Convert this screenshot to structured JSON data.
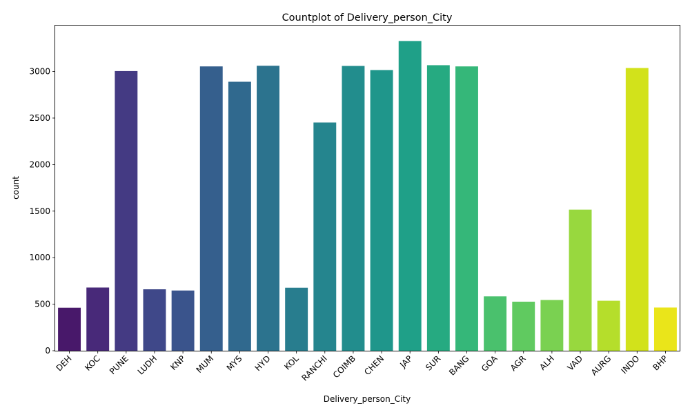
{
  "chart_data": {
    "type": "bar",
    "title": "Countplot of Delivery_person_City",
    "xlabel": "Delivery_person_City",
    "ylabel": "count",
    "categories": [
      "DEH",
      "KOC",
      "PUNE",
      "LUDH",
      "KNP",
      "MUM",
      "MYS",
      "HYD",
      "KOL",
      "RANCHI",
      "COIMB",
      "CHEN",
      "JAP",
      "SUR",
      "BANG",
      "GOA",
      "AGR",
      "ALH",
      "VAD",
      "AURG",
      "INDO",
      "BHP"
    ],
    "values": [
      462,
      679,
      3005,
      660,
      647,
      3055,
      2890,
      3062,
      677,
      2452,
      3060,
      3016,
      3328,
      3068,
      3055,
      584,
      527,
      545,
      1516,
      537,
      3038,
      464
    ],
    "ylim": [
      0,
      3494
    ],
    "yticks": [
      0,
      500,
      1000,
      1500,
      2000,
      2500,
      3000
    ],
    "grid": false,
    "legend": "none",
    "palette": "viridis",
    "colors": [
      "#48186a",
      "#482979",
      "#443a83",
      "#3f4889",
      "#3a548c",
      "#355f8d",
      "#30698e",
      "#2c738e",
      "#287d8e",
      "#25858e",
      "#228d8d",
      "#1f968b",
      "#1fa088",
      "#26aa81",
      "#35b779",
      "#4ac16d",
      "#60ca60",
      "#7ad151",
      "#98d83e",
      "#b5de2b",
      "#d2e21b",
      "#eae51a"
    ]
  }
}
